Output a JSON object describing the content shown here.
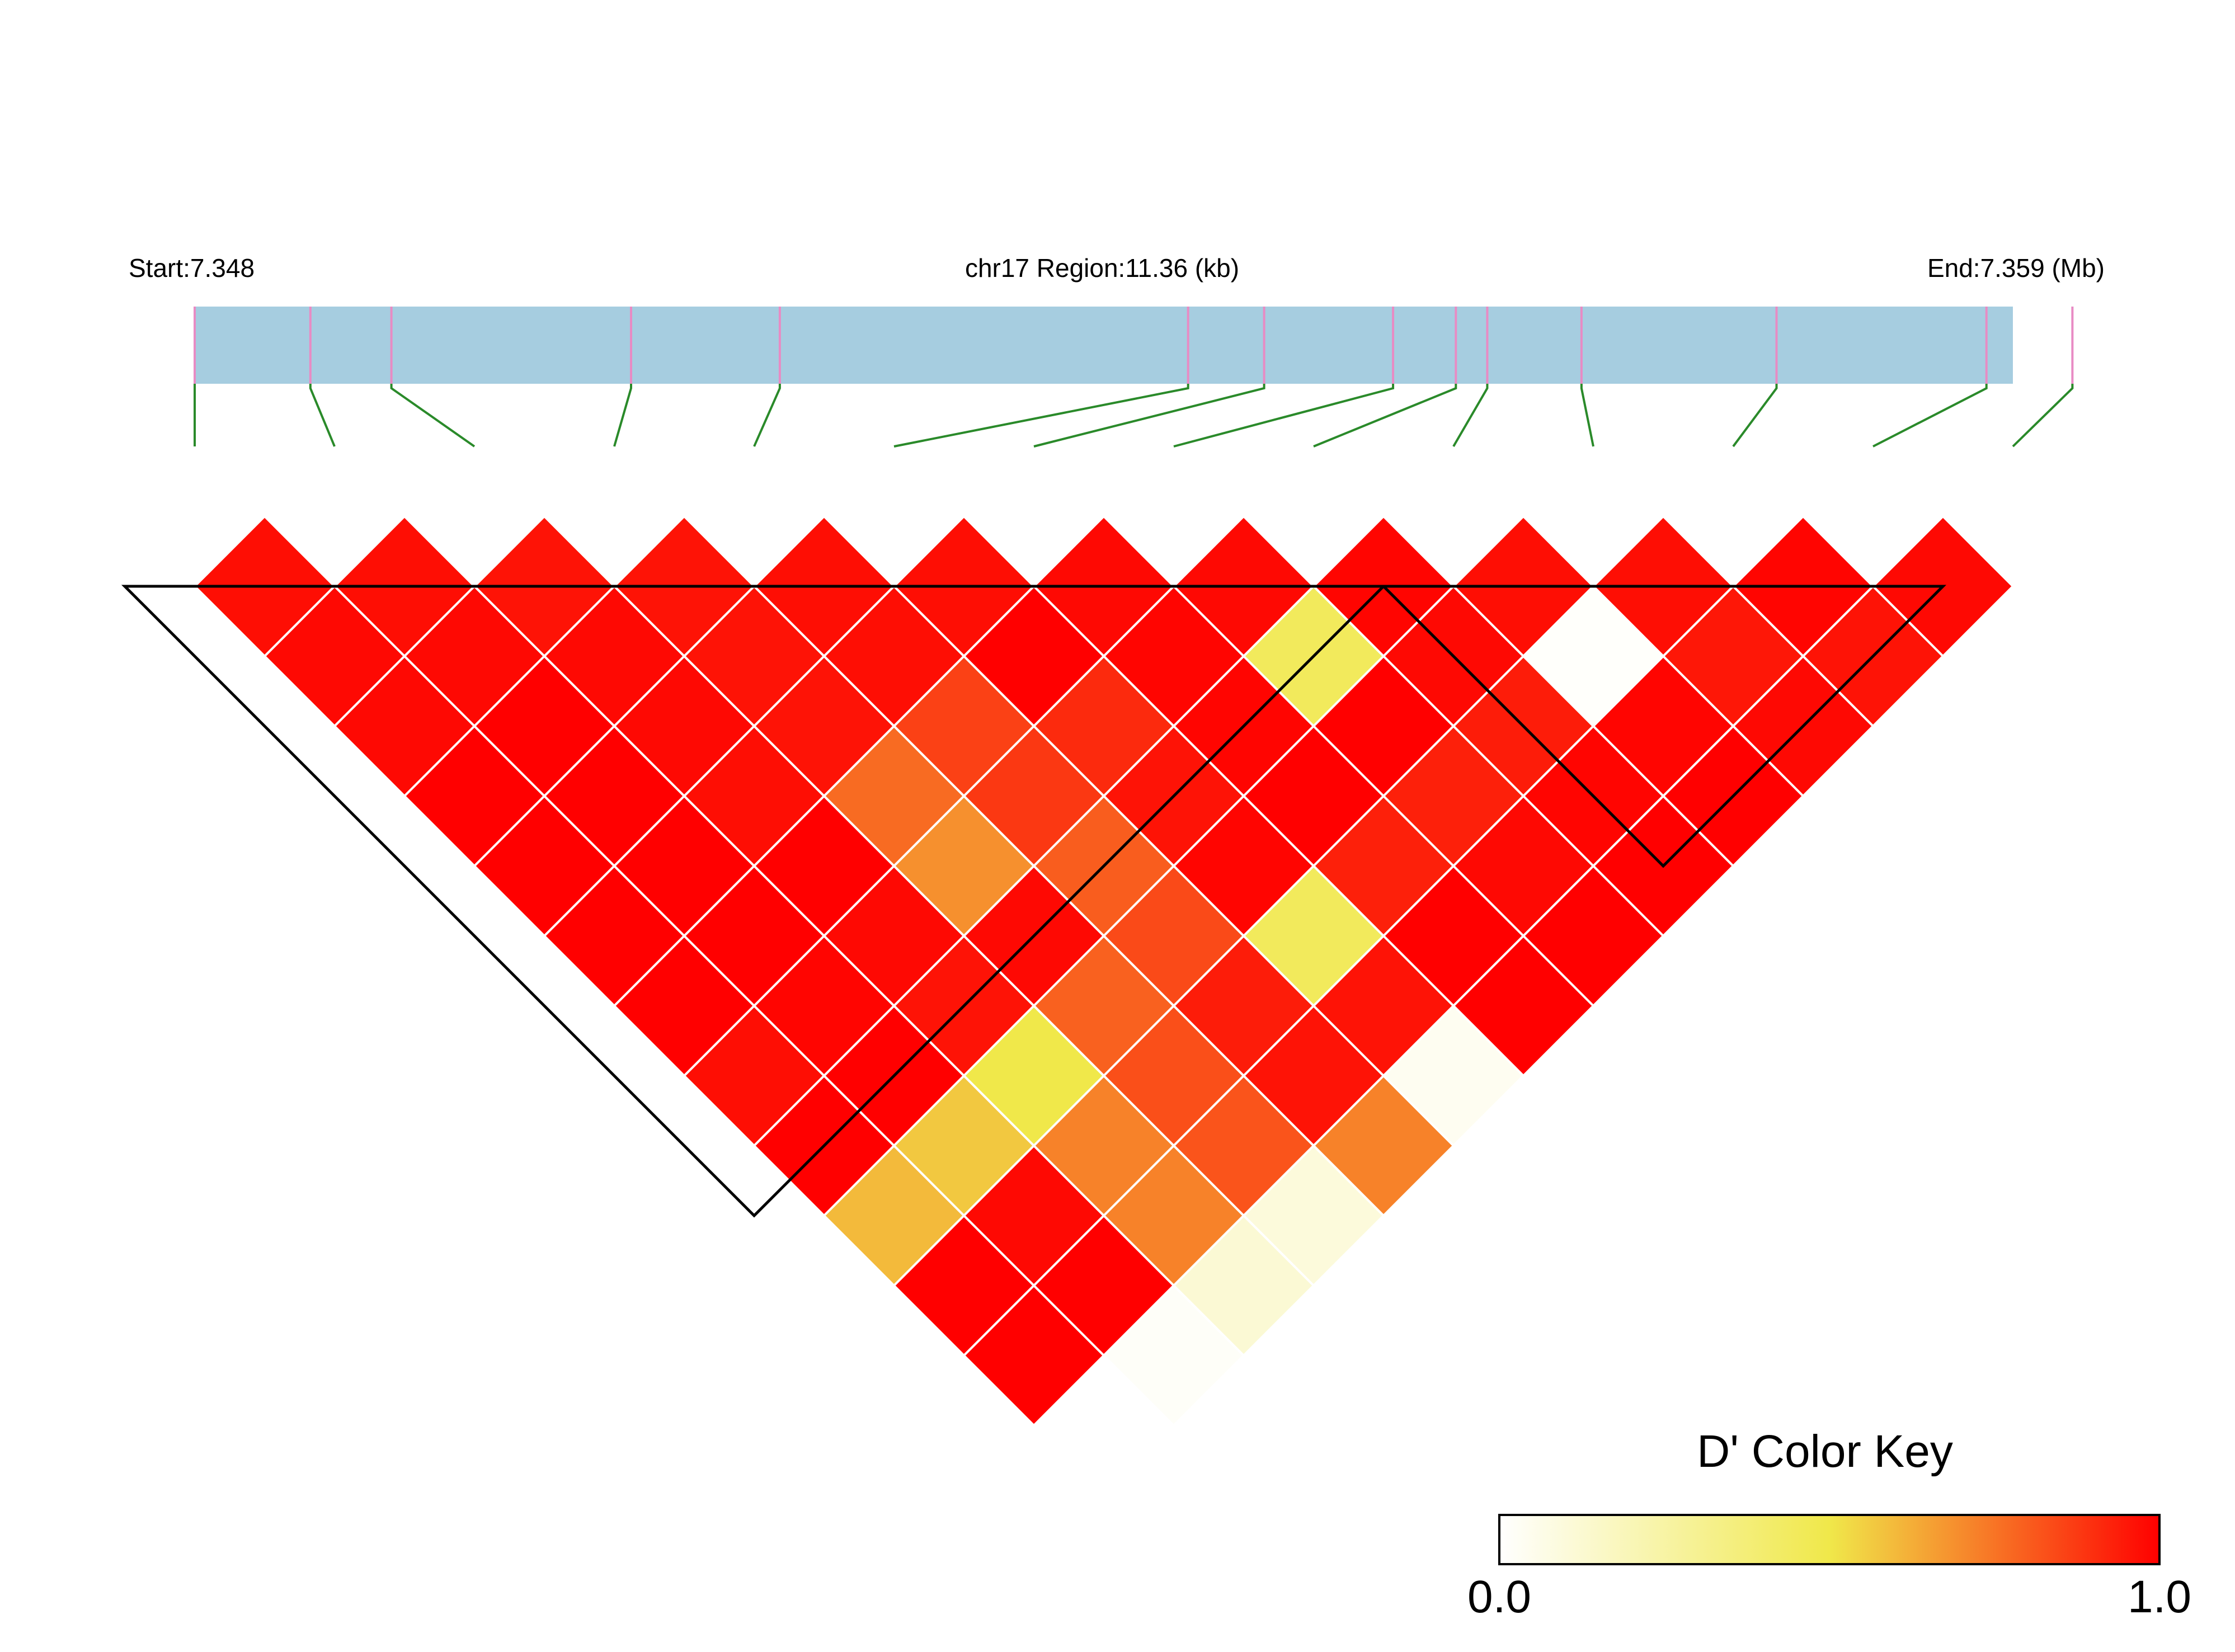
{
  "header": {
    "start_label": "Start:7.348",
    "region_label": "chr17 Region:11.36 (kb)",
    "end_label": "End:7.359 (Mb)"
  },
  "legend": {
    "title": "D' Color Key",
    "min_label": "0.0",
    "max_label": "1.0"
  },
  "colors": {
    "track": "#a6cde0",
    "snp_tick": "#e88bc4",
    "connector": "#2a8a2a",
    "block_outline": "#000000",
    "cell_border": "#ffffff",
    "scale_low": "#ffffff",
    "scale_mid": "#f0e84a",
    "scale_high": "#ff0000"
  },
  "chart_data": {
    "type": "heatmap",
    "title": "",
    "x_range_mb": [
      7.348,
      7.359
    ],
    "region_kb": 11.36,
    "snp_count": 14,
    "snp_positions_mb": [
      7.348,
      7.3487,
      7.34919,
      7.35064,
      7.35154,
      7.35401,
      7.35447,
      7.35525,
      7.35563,
      7.35582,
      7.35639,
      7.35757,
      7.35884,
      7.35936
    ],
    "value_name": "D'",
    "value_range": [
      0.0,
      1.0
    ],
    "dprime_by_distance": [
      [
        0.97,
        0.97,
        0.96,
        0.96,
        0.97,
        0.97,
        0.98,
        0.98,
        0.99,
        0.97,
        0.97,
        0.99,
        0.98
      ],
      [
        0.98,
        0.98,
        0.98,
        0.96,
        0.97,
        1.0,
        0.99,
        0.45,
        0.98,
        0.01,
        0.95,
        0.96,
        1.0
      ],
      [
        0.98,
        1.0,
        0.98,
        0.96,
        0.86,
        0.91,
        0.99,
        1.0,
        0.94,
        0.99,
        0.98,
        0.98
      ],
      [
        1.0,
        1.0,
        0.97,
        0.77,
        0.88,
        0.96,
        1.0,
        0.93,
        0.99,
        1.0,
        0.99,
        0.38
      ],
      [
        1.0,
        1.0,
        1.0,
        0.69,
        0.8,
        0.99,
        0.93,
        0.98,
        1.0,
        0.98,
        0.28
      ],
      [
        1.0,
        1.0,
        0.98,
        0.98,
        0.84,
        0.45,
        1.0,
        1.0,
        0.88
      ],
      [
        1.0,
        0.99,
        0.96,
        0.79,
        0.94,
        0.96,
        1.0,
        0.99
      ],
      [
        0.97,
        1.0,
        0.5,
        0.83,
        0.96,
        0.04,
        0.7
      ],
      [
        1.0,
        0.57,
        0.72,
        0.82,
        0.72
      ],
      [
        0.6,
        0.98,
        0.72,
        0.1
      ],
      [
        1.0,
        1.0,
        0.12
      ],
      [
        1.0,
        0.02
      ]
    ],
    "ld_blocks": [
      [
        0,
        8
      ],
      [
        9,
        12
      ]
    ]
  }
}
